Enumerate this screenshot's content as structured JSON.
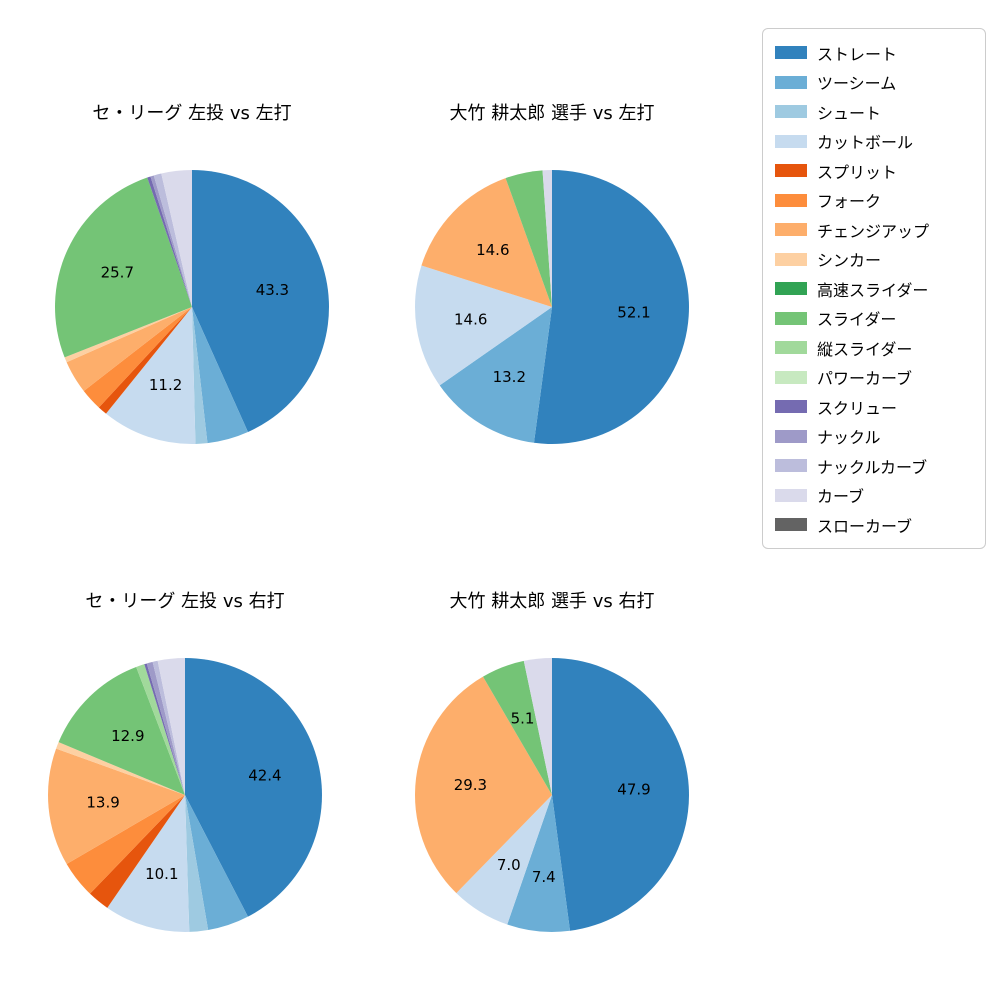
{
  "figure": {
    "background": "#ffffff"
  },
  "palette": {
    "ストレート": "#3182bd",
    "ツーシーム": "#6baed6",
    "シュート": "#9ecae1",
    "カットボール": "#c6dbef",
    "スプリット": "#e6550d",
    "フォーク": "#fd8d3c",
    "チェンジアップ": "#fdae6b",
    "シンカー": "#fdd0a2",
    "高速スライダー": "#31a354",
    "スライダー": "#74c476",
    "縦スライダー": "#a1d99b",
    "パワーカーブ": "#c7e9c0",
    "スクリュー": "#756bb1",
    "ナックル": "#9e9ac8",
    "ナックルカーブ": "#bcbddc",
    "カーブ": "#dadaeb",
    "スローカーブ": "#636363"
  },
  "legend": {
    "items": [
      "ストレート",
      "ツーシーム",
      "シュート",
      "カットボール",
      "スプリット",
      "フォーク",
      "チェンジアップ",
      "シンカー",
      "高速スライダー",
      "スライダー",
      "縦スライダー",
      "パワーカーブ",
      "スクリュー",
      "ナックル",
      "ナックルカーブ",
      "カーブ",
      "スローカーブ"
    ]
  },
  "chart_data": [
    {
      "type": "pie",
      "title": "セ・リーグ 左投 vs 左打",
      "start_angle_deg": 0,
      "direction": "clockwise",
      "label_threshold_pct": 5,
      "slices": [
        {
          "name": "ストレート",
          "value": 43.3,
          "label": "43.3"
        },
        {
          "name": "ツーシーム",
          "value": 4.9
        },
        {
          "name": "シュート",
          "value": 1.4
        },
        {
          "name": "カットボール",
          "value": 11.2,
          "label": "11.2"
        },
        {
          "name": "スプリット",
          "value": 1.1
        },
        {
          "name": "フォーク",
          "value": 2.6
        },
        {
          "name": "チェンジアップ",
          "value": 3.9
        },
        {
          "name": "シンカー",
          "value": 0.6
        },
        {
          "name": "スライダー",
          "value": 25.7,
          "label": "25.7"
        },
        {
          "name": "スクリュー",
          "value": 0.4
        },
        {
          "name": "ナックル",
          "value": 0.4
        },
        {
          "name": "ナックルカーブ",
          "value": 0.9
        },
        {
          "name": "カーブ",
          "value": 3.6
        }
      ]
    },
    {
      "type": "pie",
      "title": "大竹 耕太郎 選手 vs 左打",
      "start_angle_deg": 0,
      "direction": "clockwise",
      "label_threshold_pct": 5,
      "slices": [
        {
          "name": "ストレート",
          "value": 52.1,
          "label": "52.1"
        },
        {
          "name": "ツーシーム",
          "value": 13.2,
          "label": "13.2"
        },
        {
          "name": "カットボール",
          "value": 14.6,
          "label": "14.6"
        },
        {
          "name": "チェンジアップ",
          "value": 14.6,
          "label": "14.6"
        },
        {
          "name": "スライダー",
          "value": 4.4
        },
        {
          "name": "カーブ",
          "value": 1.1
        }
      ]
    },
    {
      "type": "pie",
      "title": "セ・リーグ 左投 vs 右打",
      "start_angle_deg": 0,
      "direction": "clockwise",
      "label_threshold_pct": 5,
      "slices": [
        {
          "name": "ストレート",
          "value": 42.4,
          "label": "42.4"
        },
        {
          "name": "ツーシーム",
          "value": 4.9
        },
        {
          "name": "シュート",
          "value": 2.2
        },
        {
          "name": "カットボール",
          "value": 10.1,
          "label": "10.1"
        },
        {
          "name": "スプリット",
          "value": 2.6
        },
        {
          "name": "フォーク",
          "value": 4.4
        },
        {
          "name": "チェンジアップ",
          "value": 13.9,
          "label": "13.9"
        },
        {
          "name": "シンカー",
          "value": 0.8
        },
        {
          "name": "スライダー",
          "value": 12.9,
          "label": "12.9"
        },
        {
          "name": "縦スライダー",
          "value": 1.0
        },
        {
          "name": "スクリュー",
          "value": 0.3
        },
        {
          "name": "ナックル",
          "value": 0.7
        },
        {
          "name": "ナックルカーブ",
          "value": 0.6
        },
        {
          "name": "カーブ",
          "value": 3.2
        }
      ]
    },
    {
      "type": "pie",
      "title": "大竹 耕太郎 選手 vs 右打",
      "start_angle_deg": 0,
      "direction": "clockwise",
      "label_threshold_pct": 5,
      "slices": [
        {
          "name": "ストレート",
          "value": 47.9,
          "label": "47.9"
        },
        {
          "name": "ツーシーム",
          "value": 7.4,
          "label": "7.4"
        },
        {
          "name": "カットボール",
          "value": 7.0,
          "label": "7.0"
        },
        {
          "name": "チェンジアップ",
          "value": 29.3,
          "label": "29.3"
        },
        {
          "name": "スライダー",
          "value": 5.1,
          "label": "5.1"
        },
        {
          "name": "カーブ",
          "value": 3.3
        }
      ]
    }
  ]
}
